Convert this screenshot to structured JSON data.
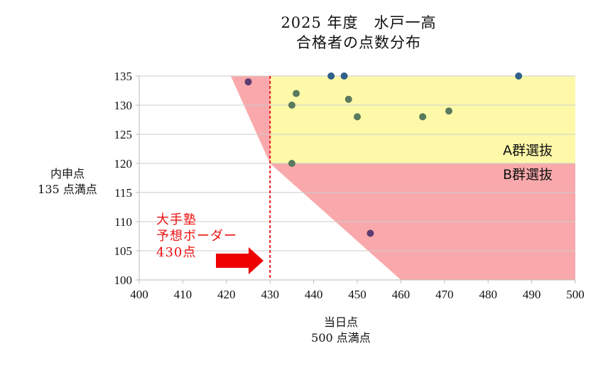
{
  "title": {
    "line1": "2025 年度　水戸一高",
    "line2": "合格者の点数分布"
  },
  "y_axis_label": {
    "line1": "内申点",
    "line2": "135 点満点"
  },
  "x_axis_label": {
    "line1": "当日点",
    "line2": "500 点満点"
  },
  "annotation": {
    "line1": "大手塾",
    "line2": "予想ボーダー",
    "line3": "430点",
    "border_value": 430
  },
  "zones": {
    "a_label": "A群選抜",
    "b_label": "B群選抜"
  },
  "colors": {
    "a_zone": "#fdf9a8",
    "b_zone": "#f9a9ab",
    "border_line": "#e8191d",
    "arrow": "#ee0000",
    "point": "#5a7a5e",
    "point_top": "#2f5f8a",
    "point_b": "#5c3c72",
    "grid": "#cccccc"
  },
  "chart_data": {
    "type": "scatter",
    "title": "2025 年度 水戸一高 合格者の点数分布",
    "xlabel": "当日点 500 点満点",
    "ylabel": "内申点 135 点満点",
    "xlim": [
      400,
      500
    ],
    "ylim": [
      100,
      135
    ],
    "x_ticks": [
      "400",
      "410",
      "420",
      "430",
      "440",
      "450",
      "460",
      "470",
      "480",
      "490",
      "500"
    ],
    "y_ticks": [
      "100",
      "105",
      "110",
      "115",
      "120",
      "125",
      "130",
      "135"
    ],
    "grid": true,
    "legend": "none",
    "series": [
      {
        "name": "合格者",
        "points": [
          {
            "x": 425,
            "y": 134
          },
          {
            "x": 435,
            "y": 130
          },
          {
            "x": 435,
            "y": 120
          },
          {
            "x": 436,
            "y": 132
          },
          {
            "x": 444,
            "y": 135
          },
          {
            "x": 447,
            "y": 135
          },
          {
            "x": 448,
            "y": 131
          },
          {
            "x": 450,
            "y": 128
          },
          {
            "x": 453,
            "y": 108
          },
          {
            "x": 465,
            "y": 128
          },
          {
            "x": 471,
            "y": 129
          },
          {
            "x": 487,
            "y": 135
          }
        ]
      }
    ],
    "regions": [
      {
        "name": "A群選抜",
        "x_range": [
          430,
          500
        ],
        "y_range": [
          120,
          135
        ],
        "color": "#fdf9a8"
      },
      {
        "name": "B群選抜",
        "polygon": [
          [
            421,
            135
          ],
          [
            430,
            135
          ],
          [
            430,
            120
          ],
          [
            500,
            120
          ],
          [
            500,
            100
          ],
          [
            460,
            100
          ],
          [
            430,
            120
          ],
          [
            421,
            135
          ]
        ],
        "color": "#f9a9ab"
      }
    ],
    "annotations": [
      {
        "text": "大手塾 予想ボーダー 430点",
        "type": "vertical_dashed_line",
        "x": 430
      },
      {
        "text": "A群選抜",
        "x": 495,
        "y": 121.5
      },
      {
        "text": "B群選抜",
        "x": 495,
        "y": 118
      }
    ]
  }
}
